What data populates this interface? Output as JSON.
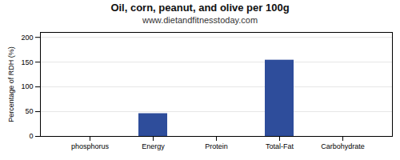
{
  "chart_data": {
    "type": "bar",
    "title": "Oil, corn, peanut, and olive per 100g",
    "subtitle": "www.dietandfitnesstoday.com",
    "categories": [
      "phosphorus",
      "Energy",
      "Protein",
      "Total-Fat",
      "Carbohydrate"
    ],
    "values": [
      0,
      46,
      0,
      154,
      0
    ],
    "color": "#2e4d9b",
    "ylabel": "Percentage of RDH (%)",
    "ylim": [
      0,
      210
    ],
    "yticks": [
      0,
      50,
      100,
      150,
      200
    ],
    "grid": true
  }
}
